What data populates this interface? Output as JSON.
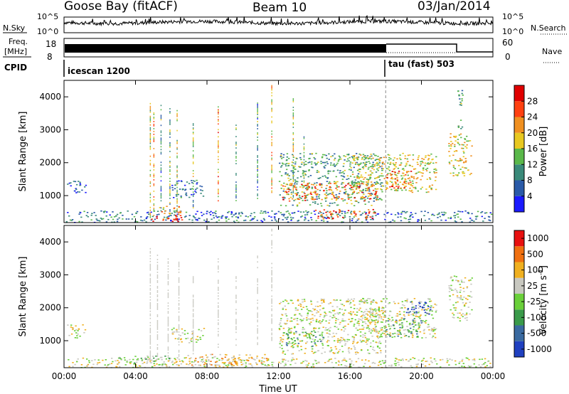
{
  "header": {
    "radar": "Goose Bay (fitACF)",
    "beam": "Beam 10",
    "date": "03/Jan/2014"
  },
  "strip_nsky": {
    "label": "N.Sky",
    "left_ticks": [
      "10^5",
      "10^0"
    ],
    "right_ticks": [
      "10^5",
      "10^0"
    ],
    "right_label": "N.Search",
    "right_line_style": "dotted"
  },
  "strip_freq": {
    "label_line1": "Freq.",
    "label_line2": "[MHz]",
    "left_ticks": [
      "18",
      "8"
    ],
    "right_ticks": [
      "60",
      "0"
    ],
    "right_label": "Nave",
    "right_line_style": "dotted"
  },
  "strip_cpid": {
    "label": "CPID",
    "segments": [
      {
        "name": "icescan 1200",
        "start_hour": 0,
        "end_hour": 18
      },
      {
        "name": "tau (fast) 503",
        "start_hour": 18,
        "end_hour": 24
      }
    ]
  },
  "chart_data": [
    {
      "type": "heatmap",
      "panel": "power",
      "ylabel": "Slant Range [km]",
      "x_range_hours": [
        0,
        24
      ],
      "ylim": [
        180,
        4500
      ],
      "yticks": [
        1000,
        2000,
        3000,
        4000
      ],
      "xticks": [
        "00:00",
        "04:00",
        "08:00",
        "12:00",
        "16:00",
        "20:00",
        "00:00"
      ],
      "colorbar": {
        "label": "Power [dB]",
        "ticks": [
          4,
          8,
          12,
          16,
          20,
          24,
          28
        ],
        "colors": [
          "#1a1aff",
          "#2a5aa8",
          "#3a8a7a",
          "#5ab84a",
          "#e8c820",
          "#f09020",
          "#ff4010",
          "#e00000"
        ]
      },
      "regions": [
        {
          "t0": 0.1,
          "t1": 24,
          "r0": 200,
          "r1": 550,
          "level": 8
        },
        {
          "t0": 4.8,
          "t1": 6.8,
          "r0": 200,
          "r1": 420,
          "level": 28
        },
        {
          "t0": 5.2,
          "t1": 6.5,
          "r0": 400,
          "r1": 700,
          "level": 20
        },
        {
          "t0": 6.0,
          "t1": 7.8,
          "r0": 950,
          "r1": 1500,
          "level": 8
        },
        {
          "t0": 12.0,
          "t1": 17.8,
          "r0": 700,
          "r1": 2300,
          "level": 12
        },
        {
          "t0": 12.2,
          "t1": 17.5,
          "r0": 850,
          "r1": 1400,
          "level": 24
        },
        {
          "t0": 14.0,
          "t1": 17.5,
          "r0": 300,
          "r1": 600,
          "level": 26
        },
        {
          "t0": 16.0,
          "t1": 20.8,
          "r0": 1100,
          "r1": 2300,
          "level": 18
        },
        {
          "t0": 18.0,
          "t1": 19.5,
          "r0": 1200,
          "r1": 1800,
          "level": 24
        },
        {
          "t0": 21.5,
          "t1": 22.8,
          "r0": 1600,
          "r1": 2900,
          "level": 18
        },
        {
          "t0": 22.0,
          "t1": 22.3,
          "r0": 3000,
          "r1": 4300,
          "level": 12
        },
        {
          "t0": 0.1,
          "t1": 1.2,
          "r0": 1100,
          "r1": 1500,
          "level": 6
        }
      ],
      "streaks": [
        {
          "t": 4.8,
          "r0": 300,
          "r1": 3900,
          "level": 16
        },
        {
          "t": 5.0,
          "r0": 400,
          "r1": 3700,
          "level": 20
        },
        {
          "t": 5.4,
          "r0": 500,
          "r1": 3800,
          "level": 10
        },
        {
          "t": 5.9,
          "r0": 400,
          "r1": 3700,
          "level": 12
        },
        {
          "t": 6.3,
          "r0": 500,
          "r1": 3600,
          "level": 16
        },
        {
          "t": 7.2,
          "r0": 600,
          "r1": 3200,
          "level": 14
        },
        {
          "t": 8.6,
          "r0": 700,
          "r1": 3800,
          "level": 22
        },
        {
          "t": 9.6,
          "r0": 800,
          "r1": 3200,
          "level": 12
        },
        {
          "t": 10.8,
          "r0": 900,
          "r1": 4000,
          "level": 10
        },
        {
          "t": 11.6,
          "r0": 1000,
          "r1": 4400,
          "level": 20
        },
        {
          "t": 12.8,
          "r0": 900,
          "r1": 4000,
          "level": 14
        },
        {
          "t": 13.4,
          "r0": 900,
          "r1": 2800,
          "level": 12
        }
      ]
    },
    {
      "type": "heatmap",
      "panel": "velocity",
      "ylabel": "Slant Range [km]",
      "xlabel": "Time UT",
      "x_range_hours": [
        0,
        24
      ],
      "ylim": [
        180,
        4500
      ],
      "yticks": [
        1000,
        2000,
        3000,
        4000
      ],
      "xticks": [
        "00:00",
        "04:00",
        "08:00",
        "12:00",
        "16:00",
        "20:00",
        "00:00"
      ],
      "colorbar": {
        "label_main": "Velocity",
        "label_unit": "[m s",
        "label_sup": "-1",
        "label_close": "]",
        "ticks": [
          "1000",
          "500",
          "100",
          "25",
          "-25",
          "-100",
          "-500",
          "-1000"
        ],
        "colors": [
          "#2040c0",
          "#3a6aa0",
          "#3a9a4a",
          "#6ad03a",
          "#c8c8c0",
          "#f0b020",
          "#f07010",
          "#e81010"
        ]
      },
      "regions": [
        {
          "t0": 0.1,
          "t1": 24,
          "r0": 200,
          "r1": 500,
          "level": 4
        },
        {
          "t0": 3.0,
          "t1": 6.0,
          "r0": 300,
          "r1": 550,
          "level": 3
        },
        {
          "t0": 6.8,
          "t1": 11.5,
          "r0": 250,
          "r1": 600,
          "level": 5
        },
        {
          "t0": 6.0,
          "t1": 7.8,
          "r0": 950,
          "r1": 1400,
          "level": 4
        },
        {
          "t0": 12.0,
          "t1": 17.8,
          "r0": 600,
          "r1": 2300,
          "level": 4
        },
        {
          "t0": 12.2,
          "t1": 14.5,
          "r0": 850,
          "r1": 1300,
          "level": 2
        },
        {
          "t0": 16.5,
          "t1": 20.8,
          "r0": 1100,
          "r1": 2300,
          "level": 4
        },
        {
          "t0": 18.0,
          "t1": 20.0,
          "r0": 1100,
          "r1": 1700,
          "level": 2
        },
        {
          "t0": 19.0,
          "t1": 20.5,
          "r0": 1800,
          "r1": 2200,
          "level": 0
        },
        {
          "t0": 21.5,
          "t1": 22.8,
          "r0": 1600,
          "r1": 3000,
          "level": 4
        },
        {
          "t0": 0.1,
          "t1": 1.2,
          "r0": 1100,
          "r1": 1500,
          "level": 4
        }
      ],
      "streaks": [
        {
          "t": 4.8,
          "r0": 300,
          "r1": 3900,
          "level": 4
        },
        {
          "t": 5.2,
          "r0": 400,
          "r1": 3700,
          "level": 4
        },
        {
          "t": 5.8,
          "r0": 400,
          "r1": 3500,
          "level": 4
        },
        {
          "t": 6.4,
          "r0": 500,
          "r1": 3400,
          "level": 4
        },
        {
          "t": 7.2,
          "r0": 600,
          "r1": 3000,
          "level": 4
        },
        {
          "t": 8.6,
          "r0": 700,
          "r1": 3500,
          "level": 4
        },
        {
          "t": 9.6,
          "r0": 800,
          "r1": 3000,
          "level": 4
        },
        {
          "t": 10.8,
          "r0": 900,
          "r1": 3800,
          "level": 4
        },
        {
          "t": 11.6,
          "r0": 1000,
          "r1": 4400,
          "level": 4
        }
      ]
    }
  ]
}
